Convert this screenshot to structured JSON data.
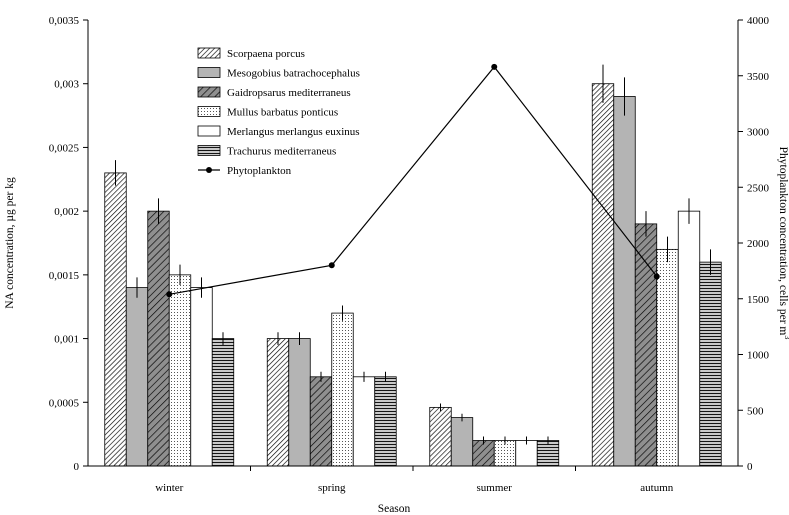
{
  "chart_data": {
    "type": "bar",
    "xlabel": "Season",
    "ylabel": "NA concentration, µg per kg",
    "y2label": "Phytoplankton concentration, cells per m",
    "y2label_sup": "3",
    "categories": [
      "winter",
      "spring",
      "summer",
      "autumn"
    ],
    "ylim": [
      0,
      0.0035
    ],
    "yticks": [
      "0",
      "0,0005",
      "0,001",
      "0,0015",
      "0,002",
      "0,0025",
      "0,003",
      "0,0035"
    ],
    "y2lim": [
      0,
      4000
    ],
    "y2ticks": [
      "0",
      "500",
      "1000",
      "1500",
      "2000",
      "2500",
      "3000",
      "3500",
      "4000"
    ],
    "legend_position": "upper-center",
    "grid": false,
    "series": [
      {
        "name": "Scorpaena porcus",
        "pattern": "diag-dense",
        "values": [
          0.0023,
          0.001,
          0.00046,
          0.003
        ],
        "errors": [
          0.0001,
          5e-05,
          3e-05,
          0.00015
        ]
      },
      {
        "name": "Mesogobius batrachocephalus",
        "pattern": "gray",
        "values": [
          0.0014,
          0.001,
          0.00038,
          0.0029
        ],
        "errors": [
          8e-05,
          5e-05,
          3e-05,
          0.00015
        ]
      },
      {
        "name": "Gaidropsarus mediterraneus",
        "pattern": "diag-wide",
        "values": [
          0.002,
          0.0007,
          0.0002,
          0.0019
        ],
        "errors": [
          0.0001,
          4e-05,
          0.0,
          0.0001
        ]
      },
      {
        "name": "Mullus barbatus ponticus",
        "pattern": "dots",
        "values": [
          0.0015,
          0.0012,
          0.0002,
          0.0017
        ],
        "errors": [
          8e-05,
          6e-05,
          0.0,
          0.0001
        ]
      },
      {
        "name": "Merlangus merlangus euxinus",
        "pattern": "white",
        "values": [
          0.0014,
          0.0007,
          0.0002,
          0.002
        ],
        "errors": [
          8e-05,
          4e-05,
          0.0,
          0.0001
        ]
      },
      {
        "name": "Trachurus mediterraneus",
        "pattern": "horiz",
        "values": [
          0.001,
          0.0007,
          0.0002,
          0.0016
        ],
        "errors": [
          5e-05,
          4e-05,
          0.0,
          0.0001
        ]
      }
    ],
    "line_series": {
      "name": "Phytoplankton",
      "axis": "right",
      "values": [
        1540,
        1800,
        3580,
        1700
      ]
    }
  }
}
